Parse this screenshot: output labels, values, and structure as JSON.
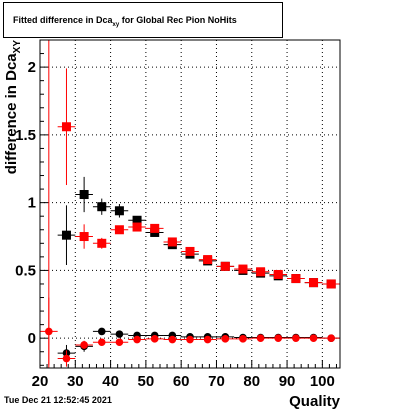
{
  "chart_data": {
    "type": "scatter",
    "title": {
      "prefix": "Fitted difference in Dca",
      "sub": "xy",
      "suffix": " for Global Rec Pion NoHits"
    },
    "xlabel": "Quality",
    "ylabel": {
      "prefix": "difference in Dca",
      "sub": "XY"
    },
    "xlim": [
      20,
      105
    ],
    "ylim": [
      -0.22,
      2.2
    ],
    "x_ticks": [
      20,
      30,
      40,
      50,
      60,
      70,
      80,
      90,
      100
    ],
    "y_ticks": [
      0,
      0.5,
      1,
      1.5,
      2
    ],
    "y_tick_labels": [
      "0",
      "0.5",
      "1",
      "1.5",
      "2"
    ],
    "grid": true,
    "series": [
      {
        "color": "#000000",
        "marker": "square",
        "points": [
          {
            "x": 27.5,
            "y": 0.76,
            "ey": 0.22
          },
          {
            "x": 32.5,
            "y": 1.06,
            "ey": 0.13
          },
          {
            "x": 37.5,
            "y": 0.97,
            "ey": 0.06
          },
          {
            "x": 42.5,
            "y": 0.94,
            "ey": 0.05
          },
          {
            "x": 47.5,
            "y": 0.87,
            "ey": 0.03
          },
          {
            "x": 52.5,
            "y": 0.78,
            "ey": 0.02
          },
          {
            "x": 57.5,
            "y": 0.69,
            "ey": 0.02
          },
          {
            "x": 62.5,
            "y": 0.62,
            "ey": 0.015
          },
          {
            "x": 67.5,
            "y": 0.57,
            "ey": 0.01
          },
          {
            "x": 72.5,
            "y": 0.53,
            "ey": 0.01
          },
          {
            "x": 77.5,
            "y": 0.5,
            "ey": 0.01
          },
          {
            "x": 82.5,
            "y": 0.48,
            "ey": 0.01
          },
          {
            "x": 87.5,
            "y": 0.46,
            "ey": 0.01
          },
          {
            "x": 92.5,
            "y": 0.44,
            "ey": 0.01
          },
          {
            "x": 97.5,
            "y": 0.41,
            "ey": 0.01
          },
          {
            "x": 102.5,
            "y": 0.4,
            "ey": 0.01
          }
        ]
      },
      {
        "color": "#ff0000",
        "marker": "square",
        "points": [
          {
            "x": 27.5,
            "y": 1.56,
            "ey": 0.43
          },
          {
            "x": 32.5,
            "y": 0.75,
            "ey": 0.09
          },
          {
            "x": 37.5,
            "y": 0.7,
            "ey": 0.04
          },
          {
            "x": 42.5,
            "y": 0.8,
            "ey": 0.03
          },
          {
            "x": 47.5,
            "y": 0.82,
            "ey": 0.03
          },
          {
            "x": 52.5,
            "y": 0.81,
            "ey": 0.02
          },
          {
            "x": 57.5,
            "y": 0.71,
            "ey": 0.02
          },
          {
            "x": 62.5,
            "y": 0.64,
            "ey": 0.015
          },
          {
            "x": 67.5,
            "y": 0.58,
            "ey": 0.01
          },
          {
            "x": 72.5,
            "y": 0.53,
            "ey": 0.01
          },
          {
            "x": 77.5,
            "y": 0.51,
            "ey": 0.01
          },
          {
            "x": 82.5,
            "y": 0.49,
            "ey": 0.01
          },
          {
            "x": 87.5,
            "y": 0.47,
            "ey": 0.01
          },
          {
            "x": 92.5,
            "y": 0.44,
            "ey": 0.01
          },
          {
            "x": 97.5,
            "y": 0.41,
            "ey": 0.01
          },
          {
            "x": 102.5,
            "y": 0.4,
            "ey": 0.01
          }
        ]
      },
      {
        "color": "#000000",
        "marker": "circle",
        "points": [
          {
            "x": 27.5,
            "y": -0.11,
            "ey": 0.06
          },
          {
            "x": 32.5,
            "y": -0.06,
            "ey": 0.04
          },
          {
            "x": 37.5,
            "y": 0.05,
            "ey": 0.02
          },
          {
            "x": 42.5,
            "y": 0.03,
            "ey": 0.01
          },
          {
            "x": 47.5,
            "y": 0.02,
            "ey": 0.01
          },
          {
            "x": 52.5,
            "y": 0.02,
            "ey": 0.01
          },
          {
            "x": 57.5,
            "y": 0.02,
            "ey": 0.01
          },
          {
            "x": 62.5,
            "y": 0.01,
            "ey": 0.01
          },
          {
            "x": 67.5,
            "y": 0.01,
            "ey": 0.01
          },
          {
            "x": 72.5,
            "y": 0.01,
            "ey": 0.01
          },
          {
            "x": 77.5,
            "y": 0.005,
            "ey": 0.01
          },
          {
            "x": 82.5,
            "y": 0.005,
            "ey": 0.01
          },
          {
            "x": 87.5,
            "y": 0.005,
            "ey": 0.01
          },
          {
            "x": 92.5,
            "y": 0.005,
            "ey": 0.01
          },
          {
            "x": 97.5,
            "y": 0.005,
            "ey": 0.01
          },
          {
            "x": 102.5,
            "y": 0.0,
            "ey": 0.01
          }
        ]
      },
      {
        "color": "#ff0000",
        "marker": "circle",
        "points": [
          {
            "x": 22.5,
            "y": 0.05,
            "ey": 0.25
          },
          {
            "x": 27.5,
            "y": -0.15,
            "ey": 0.06
          },
          {
            "x": 32.5,
            "y": -0.05,
            "ey": 0.03
          },
          {
            "x": 37.5,
            "y": -0.03,
            "ey": 0.02
          },
          {
            "x": 42.5,
            "y": -0.03,
            "ey": 0.01
          },
          {
            "x": 47.5,
            "y": -0.01,
            "ey": 0.01
          },
          {
            "x": 52.5,
            "y": -0.005,
            "ey": 0.01
          },
          {
            "x": 57.5,
            "y": -0.01,
            "ey": 0.01
          },
          {
            "x": 62.5,
            "y": -0.01,
            "ey": 0.01
          },
          {
            "x": 67.5,
            "y": -0.01,
            "ey": 0.01
          },
          {
            "x": 72.5,
            "y": -0.005,
            "ey": 0.01
          },
          {
            "x": 77.5,
            "y": -0.005,
            "ey": 0.01
          },
          {
            "x": 82.5,
            "y": 0.0,
            "ey": 0.01
          },
          {
            "x": 87.5,
            "y": 0.0,
            "ey": 0.01
          },
          {
            "x": 92.5,
            "y": 0.0,
            "ey": 0.01
          },
          {
            "x": 97.5,
            "y": 0.0,
            "ey": 0.01
          },
          {
            "x": 102.5,
            "y": 0.0,
            "ey": 0.01
          }
        ]
      }
    ],
    "red_vertical_line_x": 22.5
  },
  "footer": {
    "timestamp": "Tue Dec 21 12:52:45 2021"
  }
}
